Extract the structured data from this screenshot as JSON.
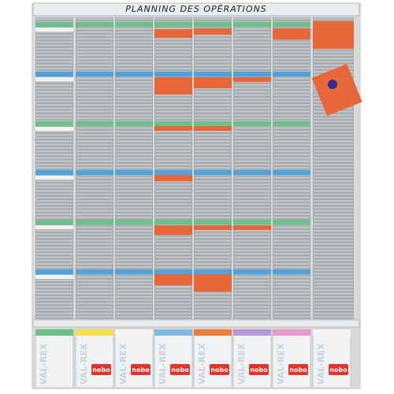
{
  "title": "PLANNING DES OPÉRATIONS",
  "boxes": [
    {
      "brand": "VAL-REX"
    },
    {
      "brand": "VAL-REX",
      "logo": "nobo"
    },
    {
      "brand": "VAL-REX",
      "logo": "nobo"
    },
    {
      "brand": "VAL-REX",
      "logo": "nobo"
    },
    {
      "brand": "VAL-REX",
      "logo": "nobo"
    },
    {
      "brand": "VAL-REX",
      "logo": "nobo"
    },
    {
      "brand": "VAL-REX",
      "logo": "nobo"
    },
    {
      "brand": "VAL-REX",
      "logo": "nobo"
    }
  ]
}
